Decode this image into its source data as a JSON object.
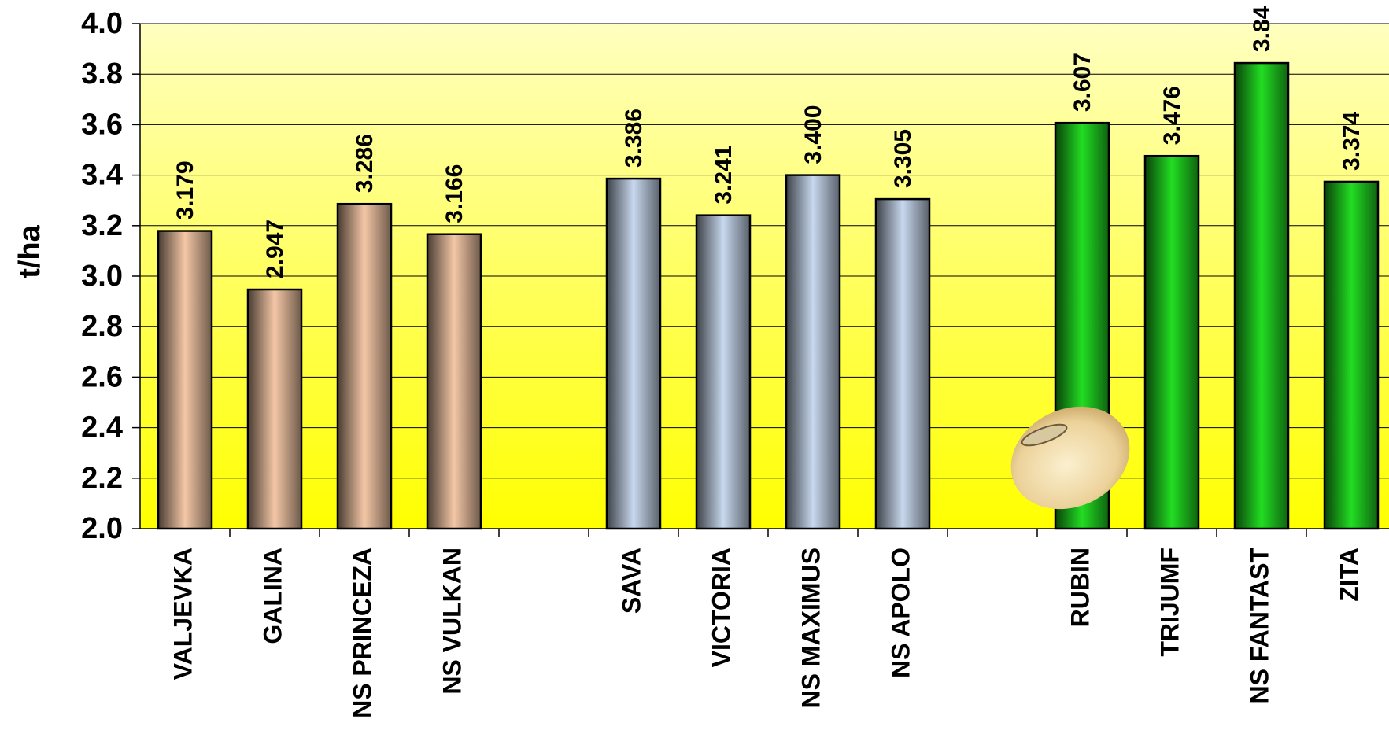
{
  "chart_data": {
    "type": "bar",
    "y_label": "t/ha",
    "categories": [
      "VALJEVKA",
      "GALINA",
      "NS PRINCEZA",
      "NS VULKAN",
      null,
      "SAVA",
      "VICTORIA",
      "NS MAXIMUS",
      "NS APOLO",
      null,
      "RUBIN",
      "TRIJUMF",
      "NS FANTAST",
      "ZITA"
    ],
    "values": [
      3.179,
      2.947,
      3.286,
      3.166,
      null,
      3.386,
      3.241,
      3.4,
      3.305,
      null,
      3.607,
      3.476,
      3.844,
      3.374
    ],
    "value_labels": [
      "3.179",
      "2.947",
      "3.286",
      "3.166",
      null,
      "3.386",
      "3.241",
      "3.400",
      "3.305",
      null,
      "3.607",
      "3.476",
      "3.84",
      "3.374"
    ],
    "colors": [
      "#f4c7a6",
      "#f4c7a6",
      "#f4c7a6",
      "#f4c7a6",
      null,
      "#c8d8ee",
      "#c8d8ee",
      "#c8d8ee",
      "#c8d8ee",
      null,
      "#22dd22",
      "#22dd22",
      "#22dd22",
      "#22dd22"
    ],
    "ylim": [
      2,
      4
    ],
    "yticks": [
      {
        "value": 2,
        "label": "2.0"
      },
      {
        "value": 2.2,
        "label": "2.2"
      },
      {
        "value": 2.4,
        "label": "2.4"
      },
      {
        "value": 2.6,
        "label": "2.6"
      },
      {
        "value": 2.8,
        "label": "2.8"
      },
      {
        "value": 3,
        "label": "3.0"
      },
      {
        "value": 3.2,
        "label": "3.2"
      },
      {
        "value": 3.4,
        "label": "3.4"
      },
      {
        "value": 3.6,
        "label": "3.6"
      },
      {
        "value": 3.8,
        "label": "3.8"
      },
      {
        "value": 4,
        "label": "4.0"
      }
    ],
    "grid": true
  }
}
